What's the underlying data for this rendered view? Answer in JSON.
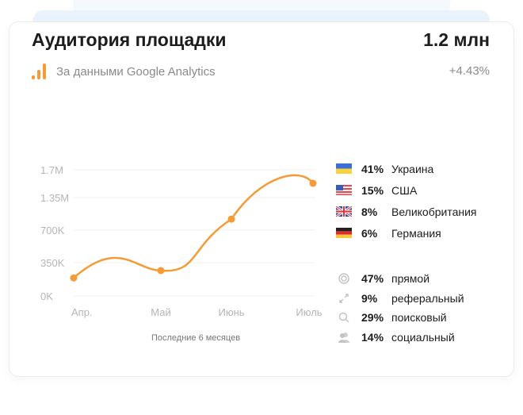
{
  "header": {
    "title": "Аудитория площадки",
    "total": "1.2 млн",
    "source": "За данными Google Analytics",
    "change": "+4.43%",
    "accent": "#f59a34"
  },
  "chart_data": {
    "type": "line",
    "xlabel": "Последние 6 месяцев",
    "categories": [
      "Апр.",
      "Май",
      "Июнь",
      "Июль"
    ],
    "y_ticks": [
      {
        "value": 0,
        "label": "0K"
      },
      {
        "value": 350000,
        "label": "350K"
      },
      {
        "value": 700000,
        "label": "700K"
      },
      {
        "value": 1350000,
        "label": "1.35M"
      },
      {
        "value": 1700000,
        "label": "1.7M"
      }
    ],
    "values": [
      190000,
      267000,
      920000,
      1530000
    ],
    "color": "#f59a34",
    "grid": true
  },
  "countries": [
    {
      "flag": "ua-flag-icon",
      "pct": "41%",
      "name": "Украина"
    },
    {
      "flag": "us-flag-icon",
      "pct": "15%",
      "name": "США"
    },
    {
      "flag": "gb-flag-icon",
      "pct": "8%",
      "name": "Великобритания"
    },
    {
      "flag": "de-flag-icon",
      "pct": "6%",
      "name": "Германия"
    }
  ],
  "sources": [
    {
      "icon": "target-icon",
      "pct": "47%",
      "name": "прямой"
    },
    {
      "icon": "link-arrows-icon",
      "pct": "9%",
      "name": "реферальный"
    },
    {
      "icon": "search-icon",
      "pct": "29%",
      "name": "поисковый"
    },
    {
      "icon": "users-icon",
      "pct": "14%",
      "name": "социальный"
    }
  ]
}
